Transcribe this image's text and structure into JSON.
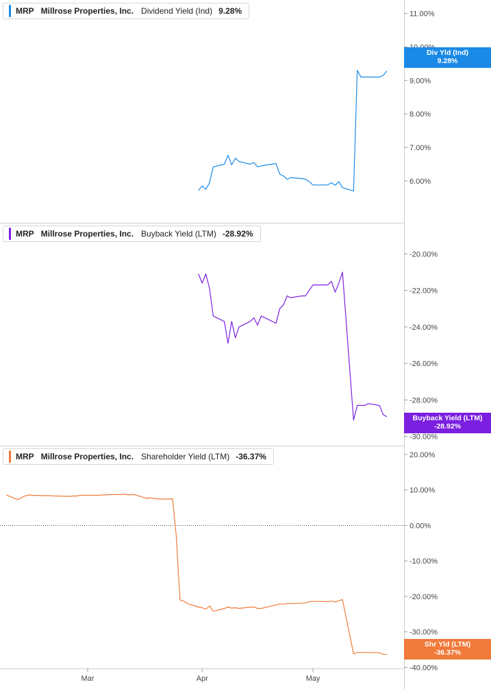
{
  "chart_data": [
    {
      "type": "line",
      "ticker": "MRP",
      "company": "Millrose Properties, Inc.",
      "metric": "Dividend Yield (Ind)",
      "value_label": "9.28%",
      "tag": {
        "label": "Div Yld (Ind)",
        "value": "9.28%"
      },
      "color": "#1a8ae6",
      "ylim": [
        4.75,
        11.4
      ],
      "yticks": [
        {
          "v": 11,
          "label": "11.00%"
        },
        {
          "v": 10,
          "label": "10.00%"
        },
        {
          "v": 9,
          "label": "9.00%"
        },
        {
          "v": 8,
          "label": "8.00%"
        },
        {
          "v": 7,
          "label": "7.00%"
        },
        {
          "v": 6,
          "label": "6.00%"
        }
      ],
      "x": [
        "2025-03-31",
        "2025-04-01",
        "2025-04-02",
        "2025-04-03",
        "2025-04-04",
        "2025-04-07",
        "2025-04-08",
        "2025-04-09",
        "2025-04-10",
        "2025-04-11",
        "2025-04-14",
        "2025-04-15",
        "2025-04-16",
        "2025-04-17",
        "2025-04-21",
        "2025-04-22",
        "2025-04-23",
        "2025-04-24",
        "2025-04-25",
        "2025-04-28",
        "2025-04-29",
        "2025-04-30",
        "2025-05-01",
        "2025-05-02",
        "2025-05-05",
        "2025-05-06",
        "2025-05-07",
        "2025-05-08",
        "2025-05-09",
        "2025-05-12",
        "2025-05-13",
        "2025-05-14",
        "2025-05-15",
        "2025-05-16",
        "2025-05-19",
        "2025-05-20",
        "2025-05-21"
      ],
      "values": [
        5.72,
        5.85,
        5.75,
        5.95,
        6.42,
        6.5,
        6.77,
        6.48,
        6.68,
        6.58,
        6.5,
        6.55,
        6.42,
        6.45,
        6.52,
        6.2,
        6.15,
        6.05,
        6.1,
        6.07,
        6.05,
        5.98,
        5.88,
        5.88,
        5.88,
        5.95,
        5.87,
        5.98,
        5.8,
        5.7,
        9.3,
        9.1,
        9.1,
        9.1,
        9.1,
        9.15,
        9.28
      ]
    },
    {
      "type": "line",
      "ticker": "MRP",
      "company": "Millrose Properties, Inc.",
      "metric": "Buyback Yield (LTM)",
      "value_label": "-28.92%",
      "tag": {
        "label": "Buyback Yield (LTM)",
        "value": "-28.92%"
      },
      "color": "#7b1fe0",
      "ylim": [
        -30.5,
        -18.3
      ],
      "yticks": [
        {
          "v": -20,
          "label": "-20.00%"
        },
        {
          "v": -22,
          "label": "-22.00%"
        },
        {
          "v": -24,
          "label": "-24.00%"
        },
        {
          "v": -26,
          "label": "-26.00%"
        },
        {
          "v": -28,
          "label": "-28.00%"
        },
        {
          "v": -30,
          "label": "-30.00%"
        }
      ],
      "x": [
        "2025-03-31",
        "2025-04-01",
        "2025-04-02",
        "2025-04-03",
        "2025-04-04",
        "2025-04-07",
        "2025-04-08",
        "2025-04-09",
        "2025-04-10",
        "2025-04-11",
        "2025-04-14",
        "2025-04-15",
        "2025-04-16",
        "2025-04-17",
        "2025-04-21",
        "2025-04-22",
        "2025-04-23",
        "2025-04-24",
        "2025-04-25",
        "2025-04-28",
        "2025-04-29",
        "2025-04-30",
        "2025-05-01",
        "2025-05-02",
        "2025-05-05",
        "2025-05-06",
        "2025-05-07",
        "2025-05-08",
        "2025-05-09",
        "2025-05-12",
        "2025-05-13",
        "2025-05-14",
        "2025-05-15",
        "2025-05-16",
        "2025-05-19",
        "2025-05-20",
        "2025-05-21"
      ],
      "values": [
        -21.1,
        -21.6,
        -21.1,
        -21.9,
        -23.4,
        -23.7,
        -24.9,
        -23.7,
        -24.6,
        -24.0,
        -23.7,
        -23.5,
        -23.9,
        -23.4,
        -23.8,
        -23.0,
        -22.8,
        -22.3,
        -22.4,
        -22.3,
        -22.3,
        -22.0,
        -21.7,
        -21.7,
        -21.7,
        -21.5,
        -22.1,
        -21.6,
        -21.0,
        -29.1,
        -28.3,
        -28.3,
        -28.3,
        -28.2,
        -28.3,
        -28.8,
        -28.92
      ]
    },
    {
      "type": "line",
      "ticker": "MRP",
      "company": "Millrose Properties, Inc.",
      "metric": "Shareholder Yield (LTM)",
      "value_label": "-36.37%",
      "tag": {
        "label": "Shr Yld (LTM)",
        "value": "-36.37%"
      },
      "color": "#f07a3a",
      "ylim": [
        -40.3,
        22.5
      ],
      "yticks": [
        {
          "v": 20,
          "label": "20.00%"
        },
        {
          "v": 10,
          "label": "10.00%"
        },
        {
          "v": 0,
          "label": "0.00%"
        },
        {
          "v": -10,
          "label": "-10.00%"
        },
        {
          "v": -20,
          "label": "-20.00%"
        },
        {
          "v": -30,
          "label": "-30.00%"
        },
        {
          "v": -40,
          "label": "-40.00%"
        }
      ],
      "zero_line": true,
      "x": [
        "2025-02-07",
        "2025-02-10",
        "2025-02-11",
        "2025-02-12",
        "2025-02-13",
        "2025-02-14",
        "2025-02-18",
        "2025-02-19",
        "2025-02-20",
        "2025-02-21",
        "2025-02-24",
        "2025-02-25",
        "2025-02-26",
        "2025-02-27",
        "2025-02-28",
        "2025-03-03",
        "2025-03-04",
        "2025-03-05",
        "2025-03-06",
        "2025-03-07",
        "2025-03-10",
        "2025-03-11",
        "2025-03-12",
        "2025-03-13",
        "2025-03-14",
        "2025-03-17",
        "2025-03-18",
        "2025-03-19",
        "2025-03-20",
        "2025-03-21",
        "2025-03-24",
        "2025-03-25",
        "2025-03-26",
        "2025-03-27",
        "2025-03-28",
        "2025-03-31",
        "2025-04-01",
        "2025-04-02",
        "2025-04-03",
        "2025-04-04",
        "2025-04-07",
        "2025-04-08",
        "2025-04-09",
        "2025-04-10",
        "2025-04-11",
        "2025-04-14",
        "2025-04-15",
        "2025-04-16",
        "2025-04-17",
        "2025-04-21",
        "2025-04-22",
        "2025-04-23",
        "2025-04-24",
        "2025-04-25",
        "2025-04-28",
        "2025-04-29",
        "2025-04-30",
        "2025-05-01",
        "2025-05-02",
        "2025-05-05",
        "2025-05-06",
        "2025-05-07",
        "2025-05-08",
        "2025-05-09",
        "2025-05-12",
        "2025-05-13",
        "2025-05-14",
        "2025-05-15",
        "2025-05-16",
        "2025-05-19",
        "2025-05-20",
        "2025-05-21"
      ],
      "values": [
        8.6,
        7.3,
        7.8,
        8.3,
        8.6,
        8.5,
        8.4,
        8.4,
        8.3,
        8.3,
        8.2,
        8.3,
        8.3,
        8.5,
        8.5,
        8.5,
        8.5,
        8.6,
        8.6,
        8.7,
        8.7,
        8.8,
        8.6,
        8.7,
        8.6,
        7.6,
        7.8,
        7.6,
        7.5,
        7.4,
        7.5,
        -3.0,
        -21.0,
        -21.3,
        -22.0,
        -23.0,
        -23.2,
        -23.6,
        -22.7,
        -24.2,
        -23.4,
        -23.0,
        -23.3,
        -23.2,
        -23.4,
        -23.0,
        -23.0,
        -23.4,
        -23.4,
        -22.4,
        -22.1,
        -22.2,
        -22.0,
        -22.0,
        -21.9,
        -21.8,
        -21.5,
        -21.4,
        -21.4,
        -21.5,
        -21.3,
        -21.6,
        -21.2,
        -20.9,
        -36.2,
        -35.8,
        -35.8,
        -35.8,
        -35.8,
        -35.9,
        -36.3,
        -36.37
      ]
    }
  ],
  "x_axis": {
    "ticks": [
      {
        "date": "2025-03-01",
        "label": "Mar"
      },
      {
        "date": "2025-04-01",
        "label": "Apr"
      },
      {
        "date": "2025-05-01",
        "label": "May"
      }
    ]
  }
}
